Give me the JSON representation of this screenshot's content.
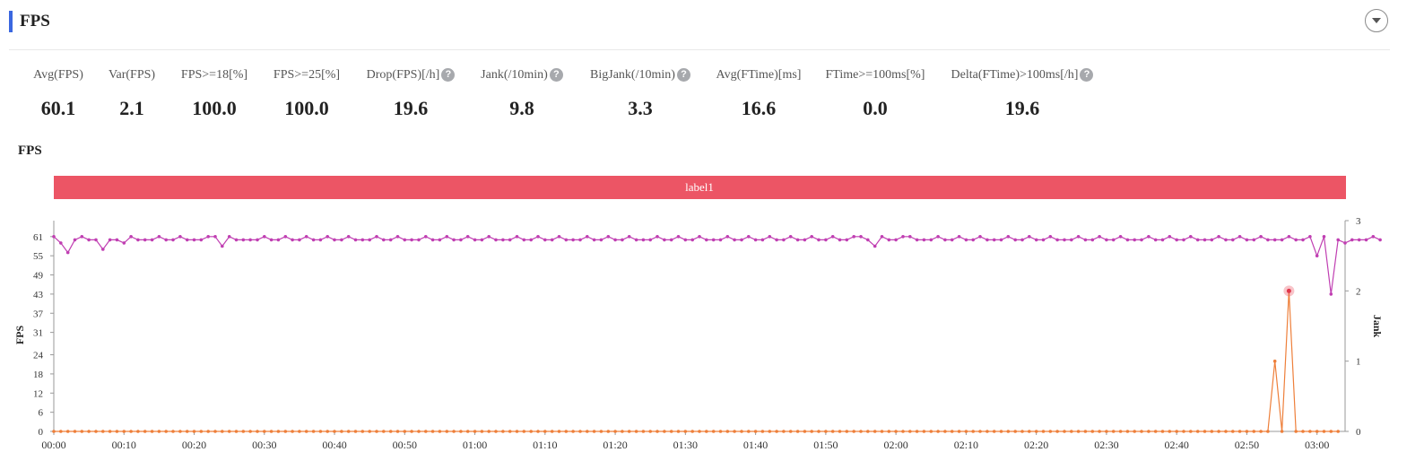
{
  "header": {
    "title": "FPS"
  },
  "metrics": [
    {
      "label": "Avg(FPS)",
      "value": "60.1",
      "help": false
    },
    {
      "label": "Var(FPS)",
      "value": "2.1",
      "help": false
    },
    {
      "label": "FPS>=18[%]",
      "value": "100.0",
      "help": false
    },
    {
      "label": "FPS>=25[%]",
      "value": "100.0",
      "help": false
    },
    {
      "label": "Drop(FPS)[/h]",
      "value": "19.6",
      "help": true
    },
    {
      "label": "Jank(/10min)",
      "value": "9.8",
      "help": true
    },
    {
      "label": "BigJank(/10min)",
      "value": "3.3",
      "help": true
    },
    {
      "label": "Avg(FTime)[ms]",
      "value": "16.6",
      "help": false
    },
    {
      "label": "FTime>=100ms[%]",
      "value": "0.0",
      "help": false
    },
    {
      "label": "Delta(FTime)>100ms[/h]",
      "value": "19.6",
      "help": true
    }
  ],
  "help_glyph": "?",
  "section": {
    "title": "FPS"
  },
  "chart_data": {
    "type": "line",
    "label_band": {
      "text": "label1",
      "color": "#ec5565"
    },
    "x": {
      "ticks": [
        "00:00",
        "00:10",
        "00:20",
        "00:30",
        "00:40",
        "00:50",
        "01:00",
        "01:10",
        "01:20",
        "01:30",
        "01:40",
        "01:50",
        "02:00",
        "02:10",
        "02:20",
        "02:30",
        "02:40",
        "02:50",
        "03:00"
      ],
      "tick_seconds": [
        0,
        10,
        20,
        30,
        40,
        50,
        60,
        70,
        80,
        90,
        100,
        110,
        120,
        130,
        140,
        150,
        160,
        170,
        180
      ],
      "range_seconds": [
        0,
        184
      ]
    },
    "y_left": {
      "label": "FPS",
      "ticks": [
        0,
        6,
        12,
        18,
        24,
        31,
        37,
        43,
        49,
        55,
        61
      ],
      "range": [
        0,
        66
      ]
    },
    "y_right": {
      "label": "Jank",
      "ticks": [
        0,
        1,
        2,
        3
      ],
      "range": [
        0,
        3
      ]
    },
    "series": [
      {
        "name": "FPS",
        "axis": "left",
        "color": "#c03fb2",
        "sample_interval_seconds": 1,
        "values": [
          61,
          59,
          56,
          60,
          61,
          60,
          60,
          57,
          60,
          60,
          59,
          61,
          60,
          60,
          60,
          61,
          60,
          60,
          61,
          60,
          60,
          60,
          61,
          61,
          58,
          61,
          60,
          60,
          60,
          60,
          61,
          60,
          60,
          61,
          60,
          60,
          61,
          60,
          60,
          61,
          60,
          60,
          61,
          60,
          60,
          60,
          61,
          60,
          60,
          61,
          60,
          60,
          60,
          61,
          60,
          60,
          61,
          60,
          60,
          61,
          60,
          60,
          61,
          60,
          60,
          60,
          61,
          60,
          60,
          61,
          60,
          60,
          61,
          60,
          60,
          60,
          61,
          60,
          60,
          61,
          60,
          60,
          61,
          60,
          60,
          60,
          61,
          60,
          60,
          61,
          60,
          60,
          61,
          60,
          60,
          60,
          61,
          60,
          60,
          61,
          60,
          60,
          61,
          60,
          60,
          61,
          60,
          60,
          61,
          60,
          60,
          61,
          60,
          60,
          61,
          61,
          60,
          58,
          61,
          60,
          60,
          61,
          61,
          60,
          60,
          60,
          61,
          60,
          60,
          61,
          60,
          60,
          61,
          60,
          60,
          60,
          61,
          60,
          60,
          61,
          60,
          60,
          61,
          60,
          60,
          60,
          61,
          60,
          60,
          61,
          60,
          60,
          61,
          60,
          60,
          60,
          61,
          60,
          60,
          61,
          60,
          60,
          61,
          60,
          60,
          60,
          61,
          60,
          60,
          61,
          60,
          60,
          61,
          60,
          60,
          60,
          61,
          60,
          60,
          61,
          55,
          61,
          43,
          60,
          59,
          60,
          60,
          60,
          61,
          60
        ]
      },
      {
        "name": "Jank",
        "axis": "right",
        "color": "#ee7f3a",
        "sample_interval_seconds": 1,
        "values": [
          0,
          0,
          0,
          0,
          0,
          0,
          0,
          0,
          0,
          0,
          0,
          0,
          0,
          0,
          0,
          0,
          0,
          0,
          0,
          0,
          0,
          0,
          0,
          0,
          0,
          0,
          0,
          0,
          0,
          0,
          0,
          0,
          0,
          0,
          0,
          0,
          0,
          0,
          0,
          0,
          0,
          0,
          0,
          0,
          0,
          0,
          0,
          0,
          0,
          0,
          0,
          0,
          0,
          0,
          0,
          0,
          0,
          0,
          0,
          0,
          0,
          0,
          0,
          0,
          0,
          0,
          0,
          0,
          0,
          0,
          0,
          0,
          0,
          0,
          0,
          0,
          0,
          0,
          0,
          0,
          0,
          0,
          0,
          0,
          0,
          0,
          0,
          0,
          0,
          0,
          0,
          0,
          0,
          0,
          0,
          0,
          0,
          0,
          0,
          0,
          0,
          0,
          0,
          0,
          0,
          0,
          0,
          0,
          0,
          0,
          0,
          0,
          0,
          0,
          0,
          0,
          0,
          0,
          0,
          0,
          0,
          0,
          0,
          0,
          0,
          0,
          0,
          0,
          0,
          0,
          0,
          0,
          0,
          0,
          0,
          0,
          0,
          0,
          0,
          0,
          0,
          0,
          0,
          0,
          0,
          0,
          0,
          0,
          0,
          0,
          0,
          0,
          0,
          0,
          0,
          0,
          0,
          0,
          0,
          0,
          0,
          0,
          0,
          0,
          0,
          0,
          0,
          0,
          0,
          0,
          0,
          0,
          0,
          0,
          1,
          0,
          2,
          0,
          0,
          0,
          0,
          0,
          0,
          0
        ]
      }
    ],
    "highlight": {
      "series": "Jank",
      "index": 176
    }
  }
}
